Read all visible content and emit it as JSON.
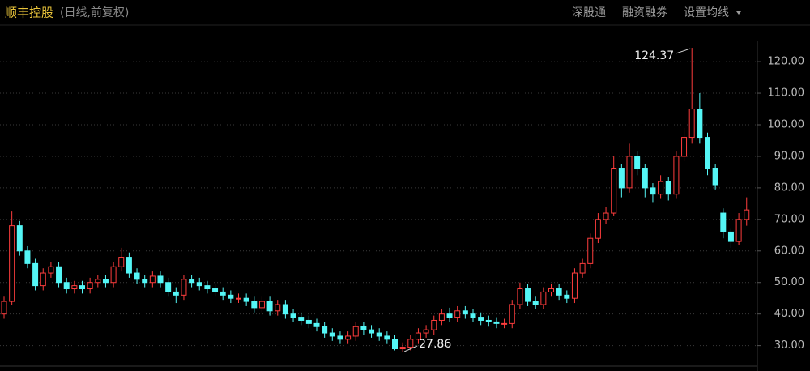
{
  "chart_data": {
    "type": "candlestick",
    "title": "顺丰控股",
    "subtitle": "(日线,前复权)",
    "buttons": [
      "深股通",
      "融资融券",
      "设置均线"
    ],
    "annotations": [
      "124.37",
      "27.86"
    ],
    "up_color": "#ff3d3d",
    "down_color": "#54f6f6",
    "grid": true,
    "ylim": [
      24,
      126.7
    ],
    "yticks": [
      {
        "value": 30,
        "label": "30.00"
      },
      {
        "value": 40,
        "label": "40.00"
      },
      {
        "value": 50,
        "label": "50.00"
      },
      {
        "value": 60,
        "label": "60.00"
      },
      {
        "value": 70,
        "label": "70.00"
      },
      {
        "value": 80,
        "label": "80.00"
      },
      {
        "value": 90,
        "label": "90.00"
      },
      {
        "value": 100,
        "label": "100.00"
      },
      {
        "value": 110,
        "label": "110.00"
      },
      {
        "value": 120,
        "label": "120.00"
      }
    ],
    "open": [
      40,
      44,
      68,
      60,
      56,
      49,
      53,
      55,
      50,
      48,
      49,
      48,
      50,
      51,
      50,
      55,
      58,
      53,
      51,
      50,
      52,
      50,
      47,
      46,
      51,
      50,
      49,
      48,
      47,
      46,
      45,
      45,
      44,
      42,
      44,
      41,
      43,
      40,
      39,
      38,
      37,
      36,
      34,
      33,
      32,
      33,
      36,
      35,
      34,
      33,
      32,
      29,
      29.5,
      32,
      34,
      35,
      38,
      40,
      39,
      41,
      40,
      39,
      38,
      37.5,
      37,
      37,
      43,
      48,
      44,
      43,
      47,
      48,
      46,
      45,
      53,
      56,
      64,
      70,
      72,
      86,
      80,
      90,
      86,
      80,
      78,
      82,
      78,
      90,
      96,
      105,
      96,
      86,
      72,
      66,
      63,
      70
    ],
    "high": [
      45.5,
      72.5,
      69.5,
      61.5,
      57.5,
      54.5,
      56.5,
      56.5,
      51.5,
      50.5,
      50.5,
      51.5,
      52.5,
      52.5,
      56.5,
      61,
      59.5,
      54.5,
      52.5,
      53.5,
      53.5,
      51.5,
      48.5,
      52.5,
      52.5,
      51.5,
      50.5,
      49.5,
      48.5,
      47.5,
      46.5,
      46.5,
      45.5,
      45.5,
      45.5,
      44.5,
      44.5,
      41.5,
      40.5,
      39.5,
      38.5,
      37.5,
      35.5,
      34.5,
      34.5,
      37.5,
      37.5,
      36.5,
      35.5,
      34.5,
      33.5,
      31,
      33.5,
      35.5,
      36.5,
      39.5,
      41.5,
      42,
      42.5,
      42.5,
      41.5,
      40.5,
      39.5,
      39,
      38.5,
      44.5,
      50,
      49.5,
      45.5,
      48.5,
      49.5,
      49.5,
      47.5,
      54.5,
      57.5,
      65.5,
      72,
      74,
      90,
      87.5,
      94,
      91.5,
      87.5,
      81.5,
      84,
      83.5,
      91.5,
      99,
      124.37,
      110,
      97.5,
      87.5,
      73.5,
      67,
      72,
      77
    ],
    "low": [
      38.5,
      43,
      58.5,
      54.5,
      47.5,
      47.5,
      51.5,
      48.5,
      46.5,
      46.5,
      46.5,
      46.5,
      48.5,
      48.5,
      48.5,
      53.5,
      51.5,
      49.5,
      48.5,
      48.5,
      48.5,
      45.5,
      43.5,
      44.5,
      48.5,
      47.5,
      46.5,
      45.5,
      44.5,
      43.5,
      43.5,
      42.5,
      40.5,
      40.5,
      39.5,
      39.5,
      38.5,
      37.5,
      36.5,
      35.5,
      34.5,
      32.5,
      31.5,
      30.5,
      30.5,
      31.5,
      33.5,
      32.5,
      31.5,
      30.5,
      28.5,
      27.86,
      28.5,
      30.5,
      32.5,
      33.5,
      36.5,
      37.5,
      37.5,
      38.5,
      37.5,
      36.5,
      36,
      35.5,
      35.5,
      35.5,
      41.5,
      42.5,
      41.5,
      41.5,
      45.5,
      44.5,
      43.5,
      43.5,
      51.5,
      54.5,
      62.5,
      68.5,
      71,
      77,
      78.5,
      84,
      77,
      75.5,
      76.5,
      76,
      76.5,
      88.5,
      94,
      94,
      84,
      79.5,
      64,
      61,
      62,
      68
    ],
    "close": [
      44,
      68,
      60,
      56,
      49,
      53,
      55,
      50,
      48,
      49,
      48,
      50,
      51,
      50,
      55,
      58,
      53,
      51,
      50,
      52,
      50,
      47,
      46,
      51,
      50,
      49,
      48,
      47,
      46,
      45,
      45,
      44,
      42,
      44,
      41,
      43,
      40,
      39,
      38,
      37,
      36,
      34,
      33,
      32,
      33,
      36,
      35,
      34,
      33,
      32,
      29,
      29.5,
      32,
      34,
      35,
      38,
      40,
      39,
      41,
      40,
      39,
      38,
      37.5,
      37,
      37,
      43,
      48,
      44,
      43,
      47,
      48,
      46,
      45,
      53,
      56,
      64,
      70,
      72,
      86,
      80,
      90,
      86,
      80,
      78,
      82,
      78,
      90,
      96,
      105,
      96,
      86,
      81,
      66,
      63,
      70,
      73
    ]
  }
}
